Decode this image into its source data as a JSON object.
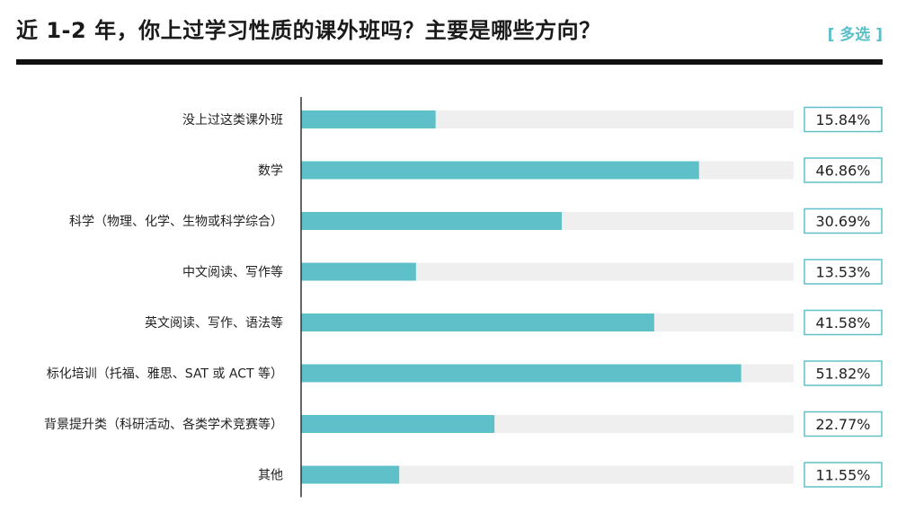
{
  "header": {
    "title": "近 1-2 年，你上过学习性质的课外班吗？主要是哪些方向？",
    "badge": "[ 多选 ]"
  },
  "chart_data": {
    "type": "bar",
    "orientation": "horizontal",
    "title": "近 1-2 年，你上过学习性质的课外班吗？主要是哪些方向？",
    "categories": [
      "没上过这类课外班",
      "数学",
      "科学（物理、化学、生物或科学综合）",
      "中文阅读、写作等",
      "英文阅读、写作、语法等",
      "标化培训（托福、雅思、SAT 或 ACT 等）",
      "背景提升类（科研活动、各类学术竞赛等）",
      "其他"
    ],
    "values": [
      15.84,
      46.86,
      30.69,
      13.53,
      41.58,
      51.82,
      22.77,
      11.55
    ],
    "value_labels": [
      "15.84%",
      "46.86%",
      "30.69%",
      "13.53%",
      "41.58%",
      "51.82%",
      "22.77%",
      "11.55%"
    ],
    "xlim": [
      0,
      58
    ],
    "grid": false,
    "colors": {
      "bar": "#5ec1c9",
      "track": "#efefef",
      "label_border": "#5ec1c9",
      "axis": "#333333"
    }
  }
}
